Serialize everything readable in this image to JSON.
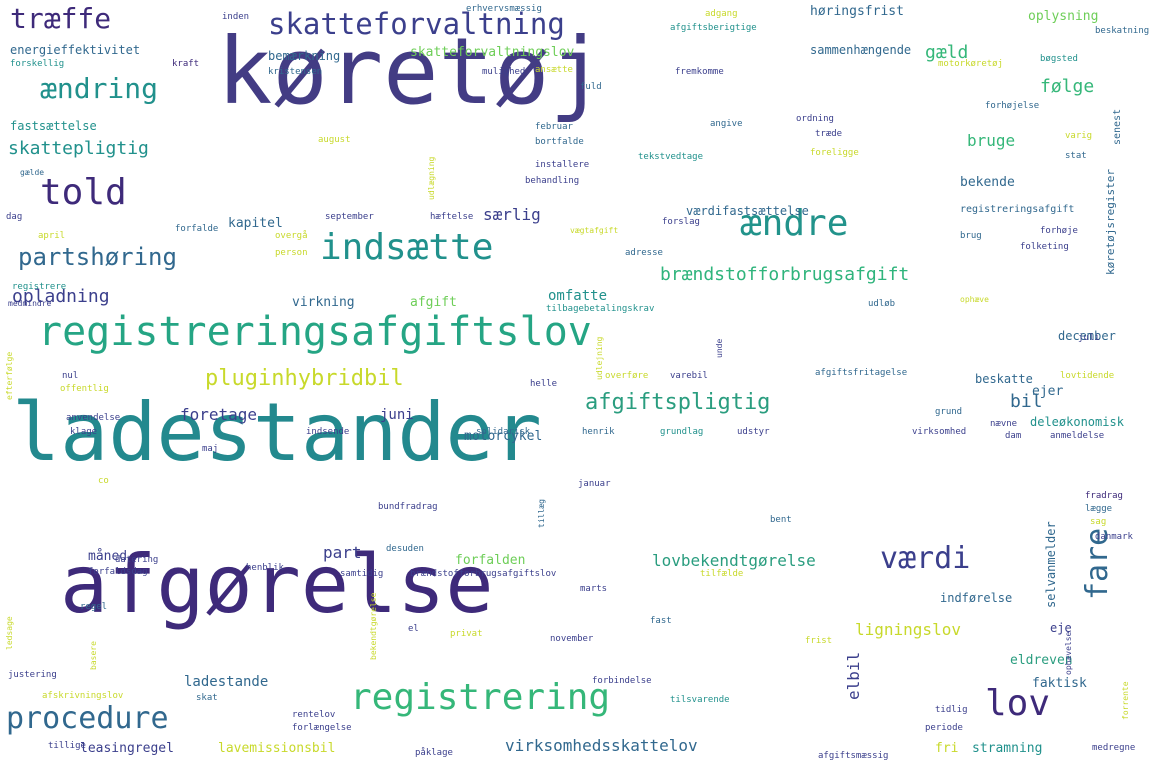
{
  "palette": {
    "dark_purple": "#3e2a7a",
    "indigo": "#3b3f8c",
    "blue": "#31688e",
    "teal": "#21918c",
    "green": "#35b779",
    "light_green": "#6ece58",
    "yellow": "#c8d92b",
    "background": "#ffffff"
  },
  "words": [
    {
      "text": "køretøj",
      "color": "#433c84",
      "size": 92
    },
    {
      "text": "ladestander",
      "color": "#23898e",
      "size": 80
    },
    {
      "text": "afgørelse",
      "color": "#3e2a7a",
      "size": 80
    },
    {
      "text": "registreringsafgiftslov",
      "color": "#25a584",
      "size": 40
    },
    {
      "text": "skatteforvaltning",
      "color": "#3b3f8c",
      "size": 29
    },
    {
      "text": "indsætte",
      "color": "#21918c",
      "size": 36
    },
    {
      "text": "ændre",
      "color": "#22938b",
      "size": 36
    },
    {
      "text": "told",
      "color": "#3e2a7a",
      "size": 36
    },
    {
      "text": "registrering",
      "color": "#35b779",
      "size": 36
    },
    {
      "text": "lov",
      "color": "#3e2a7a",
      "size": 36
    },
    {
      "text": "procedure",
      "color": "#31688e",
      "size": 30
    },
    {
      "text": "træffe",
      "color": "#3e2a7a",
      "size": 28
    },
    {
      "text": "ændring",
      "color": "#21918c",
      "size": 28
    },
    {
      "text": "partshøring",
      "color": "#31688e",
      "size": 24
    },
    {
      "text": "pluginhybridbil",
      "color": "#c8d92b",
      "size": 22
    },
    {
      "text": "afgiftspligtig",
      "color": "#2a9d7f",
      "size": 22
    },
    {
      "text": "værdi",
      "color": "#3b3f8c",
      "size": 30
    },
    {
      "text": "fare",
      "color": "#31688e",
      "size": 30
    },
    {
      "text": "brændstofforbrugsafgift",
      "color": "#2fb47c",
      "size": 18
    },
    {
      "text": "skattepligtig",
      "color": "#21918c",
      "size": 18
    },
    {
      "text": "opladning",
      "color": "#3b3f8c",
      "size": 18
    },
    {
      "text": "gæld",
      "color": "#35b779",
      "size": 18
    },
    {
      "text": "følge",
      "color": "#35b779",
      "size": 18
    },
    {
      "text": "bil",
      "color": "#31688e",
      "size": 18
    },
    {
      "text": "lovbekendtgørelse",
      "color": "#2a9d7f",
      "size": 16
    },
    {
      "text": "virksomhedsskattelov",
      "color": "#31688e",
      "size": 16
    },
    {
      "text": "foretage",
      "color": "#3b3f8c",
      "size": 16
    },
    {
      "text": "part",
      "color": "#3b3f8c",
      "size": 16
    },
    {
      "text": "juni",
      "color": "#3b3f8c",
      "size": 14
    },
    {
      "text": "særlig",
      "color": "#3b3f8c",
      "size": 16
    },
    {
      "text": "omfatte",
      "color": "#21918c",
      "size": 14
    },
    {
      "text": "bruge",
      "color": "#35b779",
      "size": 16
    },
    {
      "text": "ligningslov",
      "color": "#c8d92b",
      "size": 16
    },
    {
      "text": "elbil",
      "color": "#3b3f8c",
      "size": 16
    },
    {
      "text": "eldreven",
      "color": "#2a9d7f",
      "size": 13
    },
    {
      "text": "ladestande",
      "color": "#31688e",
      "size": 14
    },
    {
      "text": "faktisk",
      "color": "#31688e",
      "size": 13
    },
    {
      "text": "motorcykel",
      "color": "#31688e",
      "size": 13
    },
    {
      "text": "forfalden",
      "color": "#6ece58",
      "size": 13
    },
    {
      "text": "kapitel",
      "color": "#31688e",
      "size": 13
    },
    {
      "text": "virkning",
      "color": "#31688e",
      "size": 13
    },
    {
      "text": "afgift",
      "color": "#6ece58",
      "size": 13
    },
    {
      "text": "bekende",
      "color": "#31688e",
      "size": 13
    },
    {
      "text": "beskatte",
      "color": "#31688e",
      "size": 12
    },
    {
      "text": "ejer",
      "color": "#31688e",
      "size": 13
    },
    {
      "text": "deleøkonomisk",
      "color": "#21918c",
      "size": 12
    },
    {
      "text": "december",
      "color": "#31688e",
      "size": 12
    },
    {
      "text": "selvanmelder",
      "color": "#31688e",
      "size": 12
    },
    {
      "text": "indførelse",
      "color": "#31688e",
      "size": 12
    },
    {
      "text": "eje",
      "color": "#3b3f8c",
      "size": 12
    },
    {
      "text": "måned",
      "color": "#3b3f8c",
      "size": 13
    },
    {
      "text": "leasingregel",
      "color": "#3b3f8c",
      "size": 13
    },
    {
      "text": "lavemissionsbil",
      "color": "#c8d92b",
      "size": 13
    },
    {
      "text": "stramning",
      "color": "#21918c",
      "size": 13
    },
    {
      "text": "fri",
      "color": "#c8d92b",
      "size": 13
    },
    {
      "text": "høringsfrist",
      "color": "#31688e",
      "size": 13
    },
    {
      "text": "oplysning",
      "color": "#6ece58",
      "size": 13
    },
    {
      "text": "sammenhængende",
      "color": "#31688e",
      "size": 12
    },
    {
      "text": "energieffektivitet",
      "color": "#31688e",
      "size": 12
    },
    {
      "text": "bemærkning",
      "color": "#31688e",
      "size": 12
    },
    {
      "text": "skatteforvaltningslov",
      "color": "#6ece58",
      "size": 13
    },
    {
      "text": "fastsættelse",
      "color": "#21918c",
      "size": 12
    },
    {
      "text": "værdifastsættelse",
      "color": "#31688e",
      "size": 12
    },
    {
      "text": "køretøjsregister",
      "color": "#31688e",
      "size": 11
    },
    {
      "text": "registreringsafgift",
      "color": "#31688e",
      "size": 10
    },
    {
      "text": "afgiftsberigtige",
      "color": "#21918c",
      "size": 9
    },
    {
      "text": "erhvervsmæssig",
      "color": "#31688e",
      "size": 9
    },
    {
      "text": "adgang",
      "color": "#c8d92b",
      "size": 9
    },
    {
      "text": "inden",
      "color": "#3b3f8c",
      "size": 9
    },
    {
      "text": "forskellig",
      "color": "#21918c",
      "size": 9
    },
    {
      "text": "kraft",
      "color": "#3e2a7a",
      "size": 9
    },
    {
      "text": "kristensen",
      "color": "#31688e",
      "size": 9
    },
    {
      "text": "mulighed",
      "color": "#3b3f8c",
      "size": 9
    },
    {
      "text": "ansætte",
      "color": "#c8d92b",
      "size": 9
    },
    {
      "text": "fremkomme",
      "color": "#3b3f8c",
      "size": 9
    },
    {
      "text": "motorkøretøj",
      "color": "#c8d92b",
      "size": 9
    },
    {
      "text": "bøgsted",
      "color": "#21918c",
      "size": 9
    },
    {
      "text": "beskatning",
      "color": "#31688e",
      "size": 9
    },
    {
      "text": "fuld",
      "color": "#31688e",
      "size": 9
    },
    {
      "text": "forhøjelse",
      "color": "#31688e",
      "size": 9
    },
    {
      "text": "senest",
      "color": "#31688e",
      "size": 10
    },
    {
      "text": "august",
      "color": "#c8d92b",
      "size": 9
    },
    {
      "text": "udlægning",
      "color": "#c8d92b",
      "size": 8
    },
    {
      "text": "februar",
      "color": "#31688e",
      "size": 9
    },
    {
      "text": "angive",
      "color": "#31688e",
      "size": 9
    },
    {
      "text": "ordning",
      "color": "#3b3f8c",
      "size": 9
    },
    {
      "text": "træde",
      "color": "#3b3f8c",
      "size": 9
    },
    {
      "text": "varig",
      "color": "#c8d92b",
      "size": 9
    },
    {
      "text": "stat",
      "color": "#31688e",
      "size": 9
    },
    {
      "text": "bortfalde",
      "color": "#31688e",
      "size": 9
    },
    {
      "text": "tekstvedtage",
      "color": "#21918c",
      "size": 9
    },
    {
      "text": "foreligge",
      "color": "#c8d92b",
      "size": 9
    },
    {
      "text": "installere",
      "color": "#3b3f8c",
      "size": 9
    },
    {
      "text": "behandling",
      "color": "#3b3f8c",
      "size": 9
    },
    {
      "text": "gælde",
      "color": "#31688e",
      "size": 8
    },
    {
      "text": "dag",
      "color": "#3b3f8c",
      "size": 9
    },
    {
      "text": "september",
      "color": "#3b3f8c",
      "size": 9
    },
    {
      "text": "hæftelse",
      "color": "#3b3f8c",
      "size": 9
    },
    {
      "text": "april",
      "color": "#c8d92b",
      "size": 9
    },
    {
      "text": "forfalde",
      "color": "#31688e",
      "size": 9
    },
    {
      "text": "overgå",
      "color": "#c8d92b",
      "size": 9
    },
    {
      "text": "vægtafgift",
      "color": "#c8d92b",
      "size": 8
    },
    {
      "text": "forslag",
      "color": "#3b3f8c",
      "size": 9
    },
    {
      "text": "forhøje",
      "color": "#3b3f8c",
      "size": 9
    },
    {
      "text": "brug",
      "color": "#31688e",
      "size": 9
    },
    {
      "text": "folketing",
      "color": "#3b3f8c",
      "size": 9
    },
    {
      "text": "person",
      "color": "#c8d92b",
      "size": 9
    },
    {
      "text": "adresse",
      "color": "#31688e",
      "size": 9
    },
    {
      "text": "registrere",
      "color": "#21918c",
      "size": 9
    },
    {
      "text": "medmindre",
      "color": "#3b3f8c",
      "size": 8
    },
    {
      "text": "tilbagebetalingskrav",
      "color": "#21918c",
      "size": 9
    },
    {
      "text": "udløb",
      "color": "#31688e",
      "size": 9
    },
    {
      "text": "ophæve",
      "color": "#c8d92b",
      "size": 8
    },
    {
      "text": "udlejning",
      "color": "#c8d92b",
      "size": 8
    },
    {
      "text": "unde",
      "color": "#3b3f8c",
      "size": 8
    },
    {
      "text": "juli",
      "color": "#3b3f8c",
      "size": 9
    },
    {
      "text": "nul",
      "color": "#3b3f8c",
      "size": 9
    },
    {
      "text": "offentlig",
      "color": "#c8d92b",
      "size": 9
    },
    {
      "text": "helle",
      "color": "#3b3f8c",
      "size": 9
    },
    {
      "text": "overføre",
      "color": "#c8d92b",
      "size": 9
    },
    {
      "text": "varebil",
      "color": "#3b3f8c",
      "size": 9
    },
    {
      "text": "afgiftsfritagelse",
      "color": "#31688e",
      "size": 9
    },
    {
      "text": "lovtidende",
      "color": "#c8d92b",
      "size": 9
    },
    {
      "text": "efterfølge",
      "color": "#c8d92b",
      "size": 8
    },
    {
      "text": "anvendelse",
      "color": "#3b3f8c",
      "size": 9
    },
    {
      "text": "klage",
      "color": "#3b3f8c",
      "size": 9
    },
    {
      "text": "indsende",
      "color": "#3b3f8c",
      "size": 9
    },
    {
      "text": "solidarisk",
      "color": "#31688e",
      "size": 9
    },
    {
      "text": "henrik",
      "color": "#31688e",
      "size": 9
    },
    {
      "text": "grundlag",
      "color": "#21918c",
      "size": 9
    },
    {
      "text": "udstyr",
      "color": "#3b3f8c",
      "size": 9
    },
    {
      "text": "grund",
      "color": "#31688e",
      "size": 9
    },
    {
      "text": "nævne",
      "color": "#3b3f8c",
      "size": 9
    },
    {
      "text": "virksomhed",
      "color": "#3b3f8c",
      "size": 9
    },
    {
      "text": "dam",
      "color": "#3b3f8c",
      "size": 9
    },
    {
      "text": "anmeldelse",
      "color": "#3b3f8c",
      "size": 9
    },
    {
      "text": "maj",
      "color": "#3b3f8c",
      "size": 9
    },
    {
      "text": "co",
      "color": "#c8d92b",
      "size": 9
    },
    {
      "text": "januar",
      "color": "#3b3f8c",
      "size": 9
    },
    {
      "text": "tillæg",
      "color": "#31688e",
      "size": 8
    },
    {
      "text": "bundfradrag",
      "color": "#3b3f8c",
      "size": 9
    },
    {
      "text": "fradrag",
      "color": "#3e2a7a",
      "size": 9
    },
    {
      "text": "lægge",
      "color": "#31688e",
      "size": 9
    },
    {
      "text": "sag",
      "color": "#c8d92b",
      "size": 9
    },
    {
      "text": "bent",
      "color": "#31688e",
      "size": 9
    },
    {
      "text": "danmark",
      "color": "#3b3f8c",
      "size": 9
    },
    {
      "text": "desuden",
      "color": "#31688e",
      "size": 9
    },
    {
      "text": "datering",
      "color": "#3b3f8c",
      "size": 9
    },
    {
      "text": "forfaldsdag",
      "color": "#3b3f8c",
      "size": 9
    },
    {
      "text": "henblik",
      "color": "#3b3f8c",
      "size": 9
    },
    {
      "text": "samtidig",
      "color": "#3b3f8c",
      "size": 9
    },
    {
      "text": "brændstofforbrugsafgiftslov",
      "color": "#3b3f8c",
      "size": 9
    },
    {
      "text": "tilfælde",
      "color": "#c8d92b",
      "size": 9
    },
    {
      "text": "marts",
      "color": "#3b3f8c",
      "size": 9
    },
    {
      "text": "regel",
      "color": "#31688e",
      "size": 9
    },
    {
      "text": "ledsage",
      "color": "#c8d92b",
      "size": 8
    },
    {
      "text": "bekendtgørelse",
      "color": "#c8d92b",
      "size": 8
    },
    {
      "text": "el",
      "color": "#3b3f8c",
      "size": 9
    },
    {
      "text": "privat",
      "color": "#c8d92b",
      "size": 9
    },
    {
      "text": "fast",
      "color": "#31688e",
      "size": 9
    },
    {
      "text": "november",
      "color": "#3b3f8c",
      "size": 9
    },
    {
      "text": "frist",
      "color": "#c8d92b",
      "size": 9
    },
    {
      "text": "ophævelse",
      "color": "#3b3f8c",
      "size": 8
    },
    {
      "text": "basere",
      "color": "#c8d92b",
      "size": 8
    },
    {
      "text": "justering",
      "color": "#3b3f8c",
      "size": 9
    },
    {
      "text": "forbindelse",
      "color": "#3b3f8c",
      "size": 9
    },
    {
      "text": "tilsvarende",
      "color": "#21918c",
      "size": 9
    },
    {
      "text": "afskrivningslov",
      "color": "#c8d92b",
      "size": 9
    },
    {
      "text": "skat",
      "color": "#31688e",
      "size": 9
    },
    {
      "text": "rentelov",
      "color": "#3b3f8c",
      "size": 9
    },
    {
      "text": "forlængelse",
      "color": "#3b3f8c",
      "size": 9
    },
    {
      "text": "tidlig",
      "color": "#3b3f8c",
      "size": 9
    },
    {
      "text": "periode",
      "color": "#3b3f8c",
      "size": 9
    },
    {
      "text": "forrente",
      "color": "#c8d92b",
      "size": 8
    },
    {
      "text": "tillige",
      "color": "#3b3f8c",
      "size": 9
    },
    {
      "text": "påklage",
      "color": "#3b3f8c",
      "size": 9
    },
    {
      "text": "afgiftsmæssig",
      "color": "#3b3f8c",
      "size": 9
    },
    {
      "text": "medregne",
      "color": "#3b3f8c",
      "size": 9
    }
  ]
}
